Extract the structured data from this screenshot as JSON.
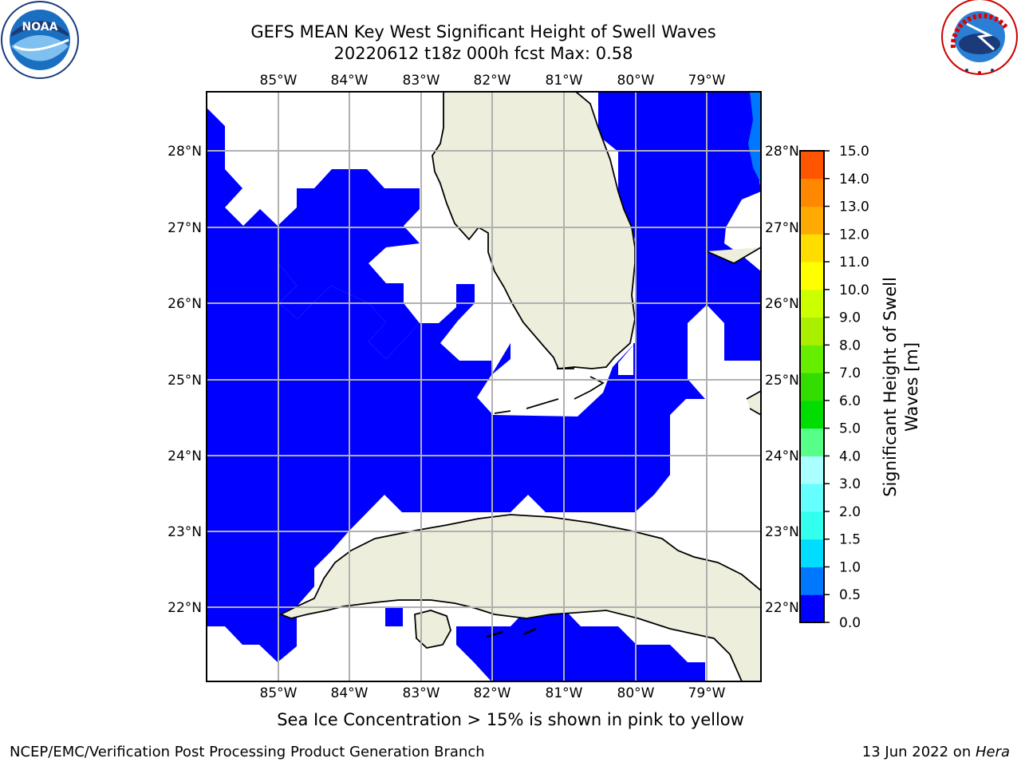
{
  "title_line1": "GEFS MEAN Key West Significant Height of Swell Waves",
  "title_line2": "20220612 t18z 000h fcst   Max: 0.58",
  "note": "Sea Ice Concentration > 15% is shown in pink to yellow",
  "footer_left": "NCEP/EMC/Verification Post Processing Product Generation Branch",
  "footer_right_date": "13 Jun 2022 on ",
  "footer_right_host": "Hera",
  "logo_left": "NOAA",
  "logo_right": "NATIONAL WEATHER SERVICE",
  "map": {
    "lon_labels": [
      "85°W",
      "84°W",
      "83°W",
      "82°W",
      "81°W",
      "80°W",
      "79°W"
    ],
    "lat_labels": [
      "28°N",
      "27°N",
      "26°N",
      "25°N",
      "24°N",
      "23°N",
      "22°N"
    ],
    "colors": {
      "land": "#eeeedd",
      "wave_0_05": "#0000ff",
      "wave_05_10": "#0077ff",
      "no_data": "#ffffff",
      "grid": "#b0b0b0"
    }
  },
  "colorbar": {
    "label_line1": "Significant Height of Swell",
    "label_line2": "Waves [m]",
    "ticks": [
      "0.0",
      "0.5",
      "1.0",
      "1.5",
      "2.0",
      "3.0",
      "4.0",
      "5.0",
      "6.0",
      "7.0",
      "8.0",
      "9.0",
      "10.0",
      "11.0",
      "12.0",
      "13.0",
      "14.0",
      "15.0"
    ],
    "colors": [
      "#0000ff",
      "#0077ff",
      "#00ddff",
      "#33ffee",
      "#66ffff",
      "#aaffff",
      "#55ff88",
      "#00dd00",
      "#33dd00",
      "#66ee00",
      "#aaee00",
      "#ccff00",
      "#ffff00",
      "#ffdd00",
      "#ffaa00",
      "#ff8800",
      "#ff5500",
      "#ff2200",
      "#ff0000"
    ]
  }
}
